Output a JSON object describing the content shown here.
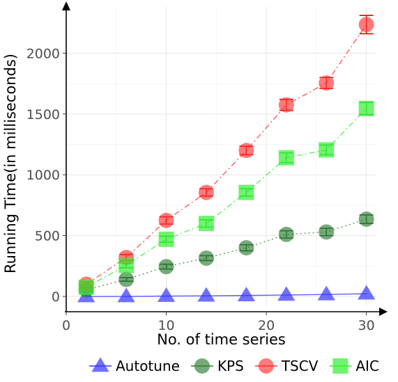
{
  "chart_data": {
    "type": "line",
    "title": "",
    "xlabel": "No. of time series",
    "ylabel": "Running Time(in milliseconds)",
    "x": [
      2,
      6,
      10,
      14,
      18,
      22,
      26,
      30
    ],
    "xlim": [
      0,
      31
    ],
    "ylim": [
      -80,
      2380
    ],
    "x_ticks": [
      "0",
      "10",
      "20",
      "30"
    ],
    "y_ticks": [
      "0",
      "500",
      "1000",
      "1500",
      "2000"
    ],
    "grid": true,
    "legend_position": "bottom",
    "series": [
      {
        "name": "Autotune",
        "color": "#3333ff",
        "marker": "triangle",
        "line_style": "solid",
        "values": [
          0,
          0,
          3,
          5,
          8,
          12,
          16,
          22
        ],
        "errors": [
          0,
          0,
          0,
          0,
          0,
          0,
          0,
          0
        ]
      },
      {
        "name": "KPS",
        "color": "#2e7d32",
        "marker": "circle",
        "line_style": "dotted",
        "values": [
          55,
          140,
          245,
          315,
          400,
          510,
          530,
          635
        ],
        "errors": [
          15,
          15,
          20,
          20,
          25,
          30,
          30,
          35
        ]
      },
      {
        "name": "TSCV",
        "color": "#ff3333",
        "marker": "circle",
        "line_style": "dashdot",
        "values": [
          100,
          320,
          625,
          855,
          1200,
          1575,
          1755,
          2235
        ],
        "errors": [
          20,
          25,
          30,
          30,
          35,
          45,
          45,
          75
        ]
      },
      {
        "name": "AIC",
        "color": "#33ee33",
        "marker": "square",
        "line_style": "dashdot",
        "values": [
          75,
          255,
          470,
          600,
          855,
          1140,
          1205,
          1545
        ],
        "errors": [
          20,
          20,
          25,
          30,
          30,
          40,
          40,
          50
        ]
      }
    ]
  }
}
